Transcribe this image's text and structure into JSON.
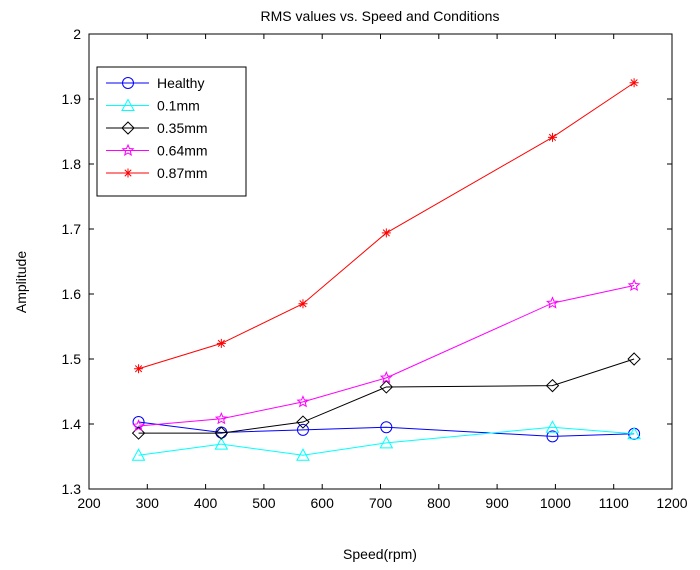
{
  "chart_data": {
    "type": "line",
    "title": "RMS values vs. Speed and Conditions",
    "xlabel": "Speed(rpm)",
    "ylabel": "Amplitude",
    "xlim": [
      200,
      1200
    ],
    "ylim": [
      1.3,
      2.0
    ],
    "x_ticks": [
      200,
      300,
      400,
      500,
      600,
      700,
      800,
      900,
      1000,
      1100,
      1200
    ],
    "y_ticks": [
      1.3,
      1.4,
      1.5,
      1.6,
      1.7,
      1.8,
      1.9,
      2.0
    ],
    "x_tick_labels": [
      "200",
      "300",
      "400",
      "500",
      "600",
      "700",
      "800",
      "900",
      "1000",
      "1100",
      "1200"
    ],
    "y_tick_labels": [
      "1.3",
      "1.4",
      "1.5",
      "1.6",
      "1.7",
      "1.8",
      "1.9",
      "2"
    ],
    "grid": false,
    "legend_position": "top-left",
    "x": [
      285,
      427,
      567,
      710,
      995,
      1135
    ],
    "series": [
      {
        "name": "Healthy",
        "color": "#0000ff",
        "marker": "circle",
        "values": [
          1.403,
          1.387,
          1.391,
          1.395,
          1.381,
          1.385
        ]
      },
      {
        "name": "0.1mm",
        "color": "#00ffff",
        "marker": "triangle",
        "values": [
          1.352,
          1.369,
          1.352,
          1.371,
          1.395,
          1.385
        ]
      },
      {
        "name": "0.35mm",
        "color": "#000000",
        "marker": "diamond",
        "values": [
          1.386,
          1.386,
          1.403,
          1.457,
          1.459,
          1.5
        ]
      },
      {
        "name": "0.64mm",
        "color": "#ff00ff",
        "marker": "star",
        "values": [
          1.397,
          1.408,
          1.434,
          1.471,
          1.586,
          1.613
        ]
      },
      {
        "name": "0.87mm",
        "color": "#ff0000",
        "marker": "asterisk",
        "values": [
          1.485,
          1.524,
          1.585,
          1.694,
          1.841,
          1.925
        ]
      }
    ]
  }
}
